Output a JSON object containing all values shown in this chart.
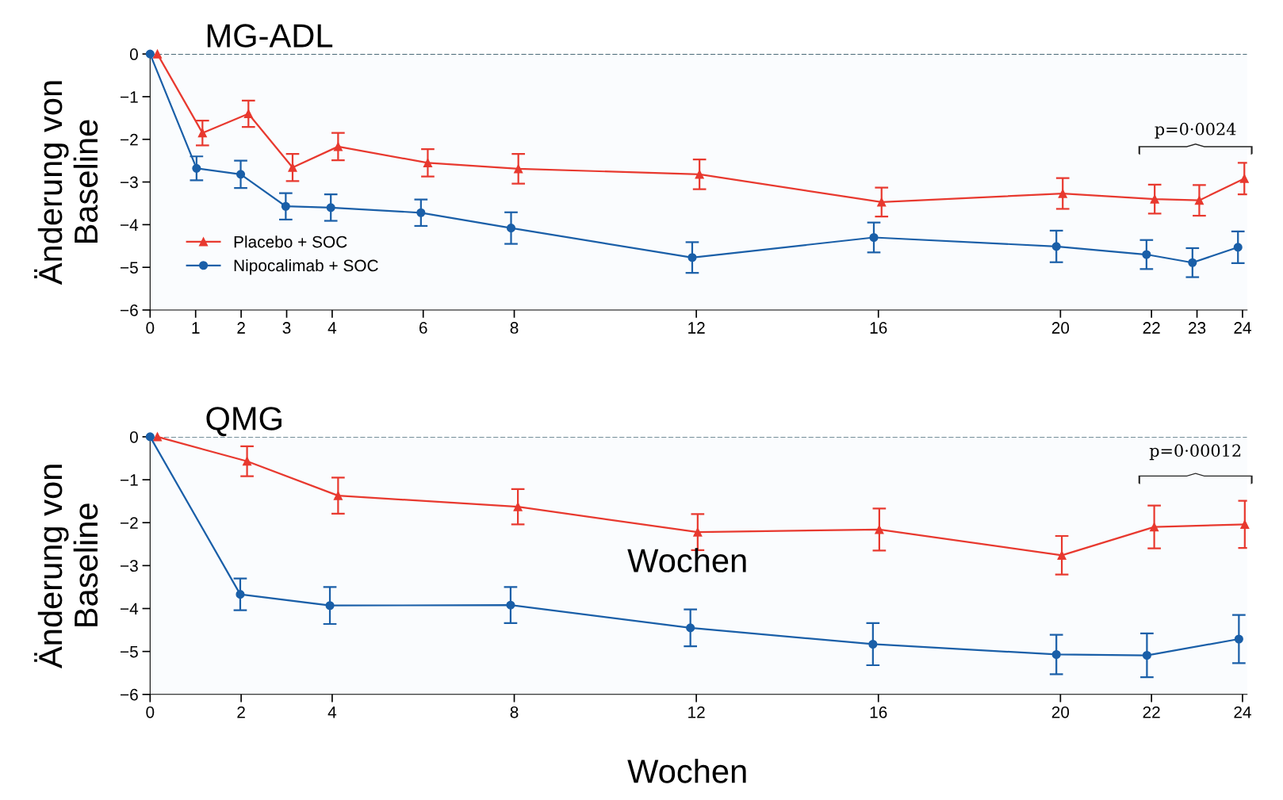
{
  "chart_data": [
    {
      "type": "line",
      "title": "MG-ADL",
      "xlabel": "Wochen",
      "ylabel": "Änderung von\nBaseline",
      "xlim": [
        0,
        24.1
      ],
      "xticks": [
        0,
        1,
        2,
        3,
        4,
        6,
        8,
        12,
        16,
        20,
        22,
        23,
        24
      ],
      "ylim": [
        -6,
        0
      ],
      "yticks": [
        -6,
        -5,
        -4,
        -3,
        -2,
        -1,
        0
      ],
      "legend": "bottom left",
      "grid": false,
      "ref_lines": [
        {
          "axis": "y",
          "value": 0,
          "color": "#4a6a78",
          "line_style": "dashed"
        }
      ],
      "annotations": [
        "p=0·0024"
      ],
      "series": [
        {
          "name": "Placebo + SOC",
          "color": "#e8392f",
          "marker": "triangle",
          "x": [
            0.16,
            1.15,
            2.16,
            3.13,
            4.13,
            6.1,
            8.09,
            12.07,
            16.07,
            20.05,
            22.07,
            23.05,
            24.04
          ],
          "values": [
            0,
            -1.85,
            -1.4,
            -2.66,
            -2.17,
            -2.55,
            -2.69,
            -2.82,
            -3.47,
            -3.27,
            -3.4,
            -3.43,
            -2.92
          ],
          "errors": [
            null,
            0.29,
            0.31,
            0.32,
            0.32,
            0.32,
            0.35,
            0.35,
            0.34,
            0.36,
            0.34,
            0.36,
            0.37
          ]
        },
        {
          "name": "Nipocalimab + SOC",
          "color": "#1a5fa8",
          "marker": "circle",
          "x": [
            0,
            1.02,
            1.99,
            2.98,
            3.97,
            5.95,
            7.93,
            11.91,
            15.9,
            19.91,
            21.89,
            22.9,
            23.9
          ],
          "values": [
            0,
            -2.68,
            -2.82,
            -3.57,
            -3.6,
            -3.72,
            -4.08,
            -4.77,
            -4.3,
            -4.51,
            -4.7,
            -4.89,
            -4.53
          ],
          "errors": [
            null,
            0.28,
            0.32,
            0.31,
            0.31,
            0.31,
            0.37,
            0.36,
            0.35,
            0.37,
            0.34,
            0.34,
            0.37
          ]
        }
      ]
    },
    {
      "type": "line",
      "title": "QMG",
      "xlabel": "Wochen",
      "ylabel": "Änderung von\nBaseline",
      "xlim": [
        0,
        24.1
      ],
      "xticks": [
        0,
        2,
        4,
        8,
        12,
        16,
        20,
        22,
        24
      ],
      "ylim": [
        -6,
        0
      ],
      "yticks": [
        -6,
        -5,
        -4,
        -3,
        -2,
        -1,
        0
      ],
      "grid": false,
      "ref_lines": [
        {
          "axis": "y",
          "value": 0,
          "color": "#4a6a78",
          "line_style": "dashed"
        }
      ],
      "annotations": [
        "p=0·00012"
      ],
      "series": [
        {
          "color": "#e8392f",
          "marker": "triangle",
          "x": [
            0.16,
            2.13,
            4.13,
            8.08,
            12.03,
            16.02,
            20.03,
            22.06,
            24.05
          ],
          "values": [
            0,
            -0.57,
            -1.37,
            -1.63,
            -2.22,
            -2.16,
            -2.76,
            -2.1,
            -2.04
          ],
          "errors": [
            null,
            0.35,
            0.42,
            0.41,
            0.42,
            0.49,
            0.45,
            0.5,
            0.55
          ]
        },
        {
          "color": "#1a5fa8",
          "marker": "circle",
          "x": [
            0,
            1.98,
            3.95,
            7.92,
            11.87,
            15.88,
            19.91,
            21.9,
            23.92
          ],
          "values": [
            0,
            -3.67,
            -3.93,
            -3.92,
            -4.45,
            -4.83,
            -5.07,
            -5.09,
            -4.71
          ],
          "errors": [
            null,
            0.37,
            0.43,
            0.42,
            0.43,
            0.49,
            0.46,
            0.51,
            0.56
          ]
        }
      ]
    }
  ]
}
